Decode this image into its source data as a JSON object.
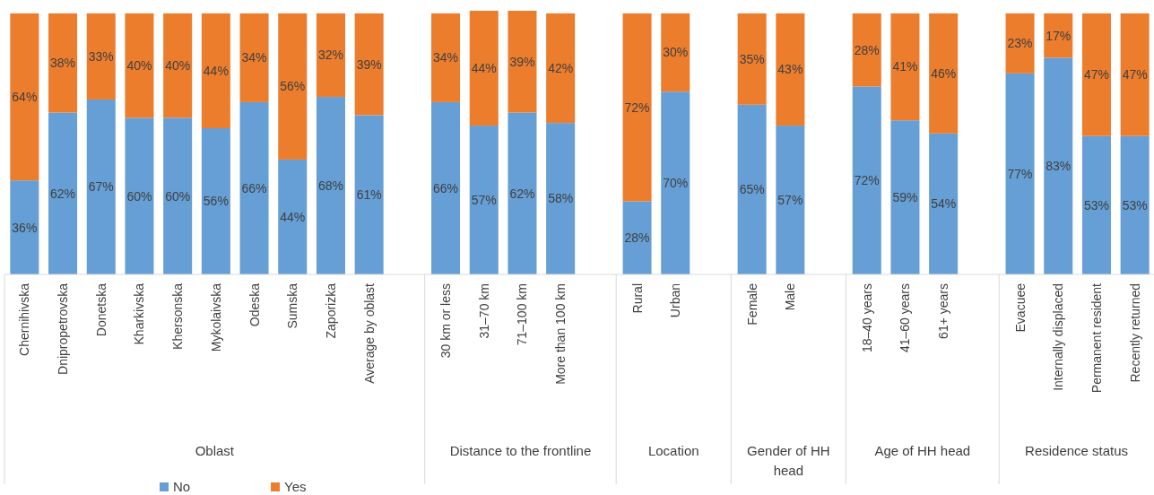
{
  "chart_data": {
    "type": "bar",
    "stacked": true,
    "legend": "bottom",
    "categories": [
      "Chernihivska",
      "Dnipropetrovska",
      "Donetska",
      "Kharkivska",
      "Khersonska",
      "Mykolaivska",
      "Odeska",
      "Sumska",
      "Zaporizka",
      "Average by oblast",
      null,
      "30 km or less",
      "31–70 km",
      "71–100 km",
      "More than 100 km",
      null,
      "Rural",
      "Urban",
      null,
      "Female",
      "Male",
      null,
      "18–40 years",
      "41–60 years",
      "61+ years",
      null,
      "Evacuee",
      "Internally displaced",
      "Permanent resident",
      "Recently returned"
    ],
    "series": [
      {
        "name": "No",
        "color": "#659fd6",
        "values": [
          36,
          62,
          67,
          60,
          60,
          56,
          66,
          44,
          68,
          61,
          null,
          66,
          57,
          62,
          58,
          null,
          28,
          70,
          null,
          65,
          57,
          null,
          72,
          59,
          54,
          null,
          77,
          83,
          53,
          53
        ],
        "value_labels": [
          "36%",
          "62%",
          "67%",
          "60%",
          "60%",
          "56%",
          "66%",
          "44%",
          "68%",
          "61%",
          null,
          "66%",
          "57%",
          "62%",
          "58%",
          null,
          "28%",
          "70%",
          null,
          "65%",
          "57%",
          null,
          "72%",
          "59%",
          "54%",
          null,
          "77%",
          "83%",
          "53%",
          "53%"
        ]
      },
      {
        "name": "Yes",
        "color": "#ec7d2d",
        "values": [
          64,
          38,
          33,
          40,
          40,
          44,
          34,
          56,
          32,
          39,
          null,
          34,
          44,
          39,
          42,
          null,
          72,
          30,
          null,
          35,
          43,
          null,
          28,
          41,
          46,
          null,
          23,
          17,
          47,
          47
        ],
        "value_labels": [
          "64%",
          "38%",
          "33%",
          "40%",
          "40%",
          "44%",
          "34%",
          "56%",
          "32%",
          "39%",
          null,
          "34%",
          "44%",
          "39%",
          "42%",
          null,
          "72%",
          "30%",
          null,
          "35%",
          "43%",
          null,
          "28%",
          "41%",
          "46%",
          null,
          "23%",
          "17%",
          "47%",
          "47%"
        ]
      }
    ],
    "annotations": [
      "Oblast",
      "Distance to the frontline",
      "Location",
      "Gender of HH head",
      "Age of HH head",
      "Residence status"
    ]
  }
}
